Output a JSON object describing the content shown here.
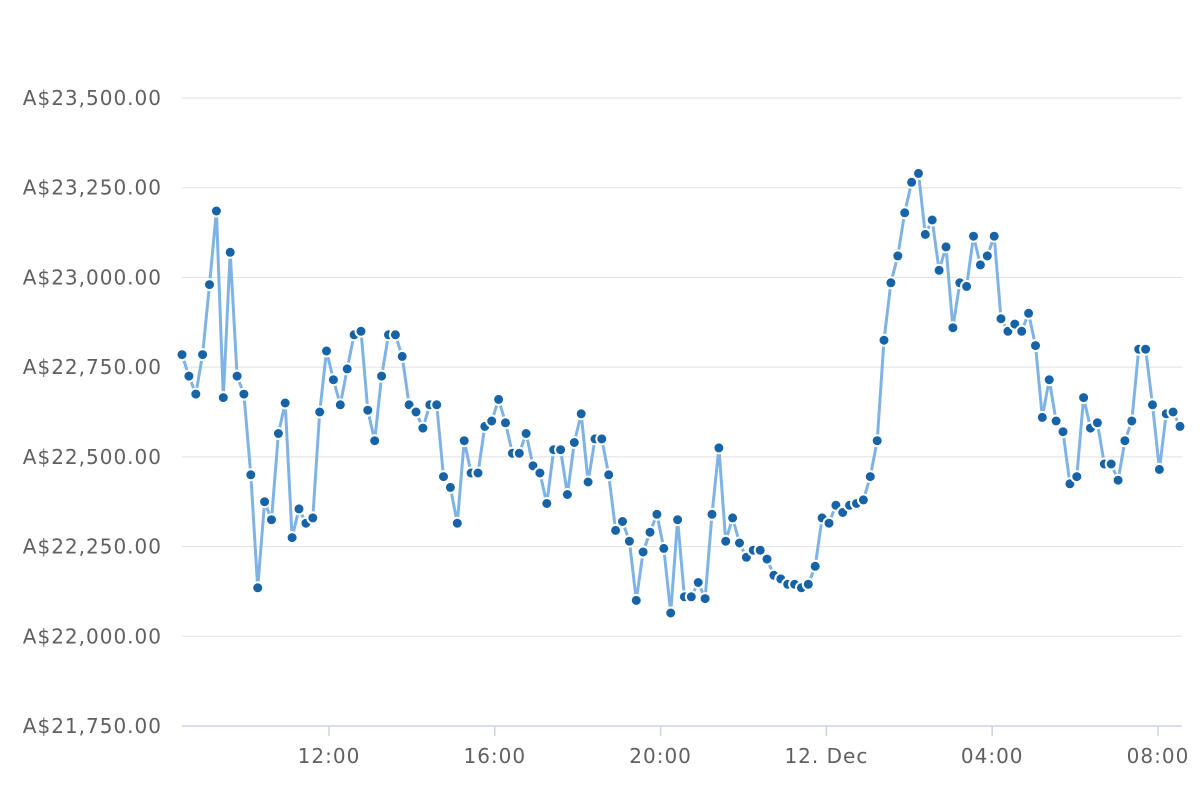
{
  "chart_data": {
    "type": "line",
    "x_unit": "hours",
    "x_start": "8:00",
    "x_step_minutes": 10,
    "ylim": [
      21750,
      23500
    ],
    "y_ticks": [
      {
        "value": 21750,
        "label": "A$21,750.00"
      },
      {
        "value": 22000,
        "label": "A$22,000.00"
      },
      {
        "value": 22250,
        "label": "A$22,250.00"
      },
      {
        "value": 22500,
        "label": "A$22,500.00"
      },
      {
        "value": 22750,
        "label": "A$22,750.00"
      },
      {
        "value": 23000,
        "label": "A$23,000.00"
      },
      {
        "value": 23250,
        "label": "A$23,250.00"
      },
      {
        "value": 23500,
        "label": "A$23,500.00"
      }
    ],
    "x_ticks": [
      {
        "value": 12,
        "label": "12:00"
      },
      {
        "value": 16,
        "label": "16:00"
      },
      {
        "value": 20,
        "label": "20:00"
      },
      {
        "value": 24,
        "label": "12. Dec"
      },
      {
        "value": 28,
        "label": "04:00"
      },
      {
        "value": 32,
        "label": "08:00"
      }
    ],
    "grid": true,
    "legend": "none",
    "series_color": "#7fb3e6",
    "point_color": "#1763a8",
    "values": [
      22785,
      22725,
      22675,
      22785,
      22980,
      23185,
      22665,
      23070,
      22725,
      22675,
      22450,
      22135,
      22375,
      22325,
      22565,
      22650,
      22275,
      22355,
      22315,
      22330,
      22625,
      22795,
      22715,
      22645,
      22745,
      22840,
      22850,
      22630,
      22545,
      22725,
      22840,
      22840,
      22780,
      22645,
      22625,
      22580,
      22645,
      22645,
      22445,
      22415,
      22315,
      22545,
      22455,
      22455,
      22585,
      22600,
      22660,
      22595,
      22510,
      22510,
      22565,
      22475,
      22455,
      22370,
      22520,
      22520,
      22395,
      22540,
      22620,
      22430,
      22550,
      22550,
      22450,
      22295,
      22320,
      22265,
      22100,
      22235,
      22290,
      22340,
      22245,
      22065,
      22325,
      22110,
      22110,
      22150,
      22105,
      22340,
      22525,
      22265,
      22330,
      22260,
      22220,
      22240,
      22240,
      22215,
      22170,
      22160,
      22145,
      22145,
      22135,
      22145,
      22195,
      22330,
      22315,
      22365,
      22345,
      22365,
      22370,
      22380,
      22445,
      22545,
      22825,
      22985,
      23060,
      23180,
      23265,
      23290,
      23120,
      23160,
      23020,
      23085,
      22860,
      22985,
      22975,
      23115,
      23035,
      23060,
      23115,
      22885,
      22850,
      22870,
      22850,
      22900,
      22810,
      22610,
      22715,
      22600,
      22570,
      22425,
      22445,
      22665,
      22580,
      22595,
      22480,
      22480,
      22435,
      22545,
      22600,
      22800,
      22800,
      22645,
      22465,
      22620,
      22625,
      22585
    ]
  }
}
